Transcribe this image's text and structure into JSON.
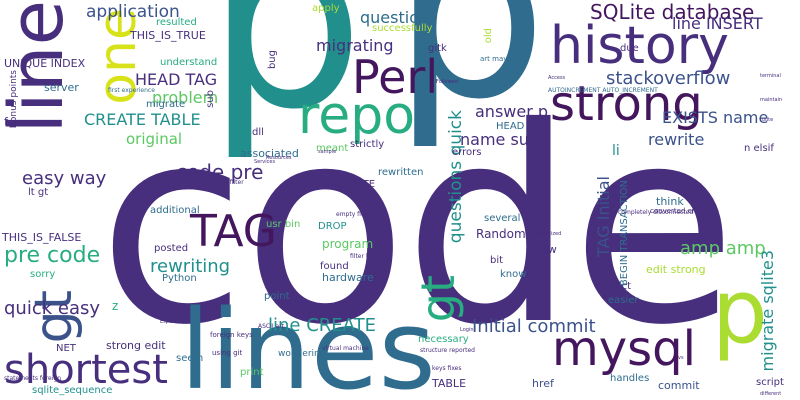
{
  "palette": {
    "darkPurple": "#44165e",
    "purple": "#472f7d",
    "indigo": "#3b528b",
    "blue": "#2f6c8e",
    "teal": "#21908d",
    "seaGreen": "#27ad81",
    "green": "#5cc863",
    "lime": "#aadc32",
    "yellow": "#d8e219"
  },
  "words": [
    {
      "text": "code"
    },
    {
      "text": "p"
    },
    {
      "text": "p"
    },
    {
      "text": "line"
    },
    {
      "text": "lines"
    },
    {
      "text": "history"
    },
    {
      "text": "strong"
    },
    {
      "text": "repo"
    },
    {
      "text": "Perl"
    },
    {
      "text": "one"
    },
    {
      "text": "TAG"
    },
    {
      "text": "mysql"
    },
    {
      "text": "p"
    },
    {
      "text": "shortest"
    },
    {
      "text": "gt"
    },
    {
      "text": "gt"
    },
    {
      "text": "SQLite database"
    },
    {
      "text": "stackoverflow"
    },
    {
      "text": "application"
    },
    {
      "text": "question"
    },
    {
      "text": "migrating"
    },
    {
      "text": "HEAD TAG"
    },
    {
      "text": "problem"
    },
    {
      "text": "CREATE TABLE"
    },
    {
      "text": "code pre"
    },
    {
      "text": "pre code"
    },
    {
      "text": "easy way"
    },
    {
      "text": "quick easy"
    },
    {
      "text": "rewriting"
    },
    {
      "text": "line CREATE"
    },
    {
      "text": "Initial commit"
    },
    {
      "text": "amp amp"
    },
    {
      "text": "rewrite"
    },
    {
      "text": "answer p"
    },
    {
      "text": "name sub"
    },
    {
      "text": "line INSERT"
    },
    {
      "text": "EXISTS name"
    },
    {
      "text": "questions quick"
    },
    {
      "text": "TAG Initial"
    },
    {
      "text": "migrate sqlite3"
    },
    {
      "text": "original"
    },
    {
      "text": "UNIQUE INDEX"
    },
    {
      "text": "THIS_IS_TRUE"
    },
    {
      "text": "THIS_IS_FALSE"
    },
    {
      "text": "resulted"
    },
    {
      "text": "understand"
    },
    {
      "text": "server"
    },
    {
      "text": "migrate"
    },
    {
      "text": "associated"
    },
    {
      "text": "additional"
    },
    {
      "text": "posted"
    },
    {
      "text": "Random"
    },
    {
      "text": "program"
    },
    {
      "text": "rewritten"
    },
    {
      "text": "several"
    },
    {
      "text": "hardware"
    },
    {
      "text": "necessary"
    },
    {
      "text": "think"
    },
    {
      "text": "edit strong"
    },
    {
      "text": "strong edit"
    },
    {
      "text": "commit"
    },
    {
      "text": "href"
    },
    {
      "text": "TABLE"
    },
    {
      "text": "handles"
    },
    {
      "text": "script"
    },
    {
      "text": "sqlite_sequence"
    },
    {
      "text": "NET"
    },
    {
      "text": "print"
    },
    {
      "text": "seem"
    },
    {
      "text": "lt gt"
    },
    {
      "text": "sorry"
    },
    {
      "text": "Python"
    },
    {
      "text": "found"
    },
    {
      "text": "wondering"
    },
    {
      "text": "nCREATE"
    },
    {
      "text": "DROP"
    },
    {
      "text": "point"
    },
    {
      "text": "new"
    },
    {
      "text": "know"
    },
    {
      "text": "bit"
    },
    {
      "text": "easier"
    },
    {
      "text": "fact"
    },
    {
      "text": "li"
    },
    {
      "text": "n elsif"
    },
    {
      "text": "errors"
    },
    {
      "text": "HEAD"
    },
    {
      "text": "strictly"
    },
    {
      "text": "meant"
    },
    {
      "text": "dll"
    },
    {
      "text": "usr bin"
    },
    {
      "text": "apply"
    },
    {
      "text": "successfully"
    },
    {
      "text": "gitk"
    },
    {
      "text": "bug"
    },
    {
      "text": "old"
    },
    {
      "text": "due"
    },
    {
      "text": "art maybe"
    },
    {
      "text": "BEGIN TRANSACTION"
    },
    {
      "text": "z"
    },
    {
      "text": "Bonus points"
    },
    {
      "text": "f"
    },
    {
      "text": "sub"
    },
    {
      "text": "first experience"
    },
    {
      "text": "AUTOINCREMENT AUTO_INCREMENT"
    },
    {
      "text": "completely disconnected"
    },
    {
      "text": "git filter"
    },
    {
      "text": "empty fields"
    },
    {
      "text": "filter branch"
    },
    {
      "text": "converted empty"
    },
    {
      "text": "ASCII art"
    },
    {
      "text": "foreign keys"
    },
    {
      "text": "using git"
    },
    {
      "text": "virtual machine"
    },
    {
      "text": "keys fixes"
    },
    {
      "text": "structure reported"
    },
    {
      "text": "statements foreign"
    },
    {
      "text": "Especially"
    },
    {
      "text": "Services"
    },
    {
      "text": "Resources"
    },
    {
      "text": "sample"
    },
    {
      "text": "terminal"
    },
    {
      "text": "route"
    },
    {
      "text": "different"
    },
    {
      "text": "maintain"
    },
    {
      "text": "Followed"
    },
    {
      "text": "Access"
    },
    {
      "text": "vs"
    },
    {
      "text": "generalized"
    },
    {
      "text": "Login"
    }
  ]
}
